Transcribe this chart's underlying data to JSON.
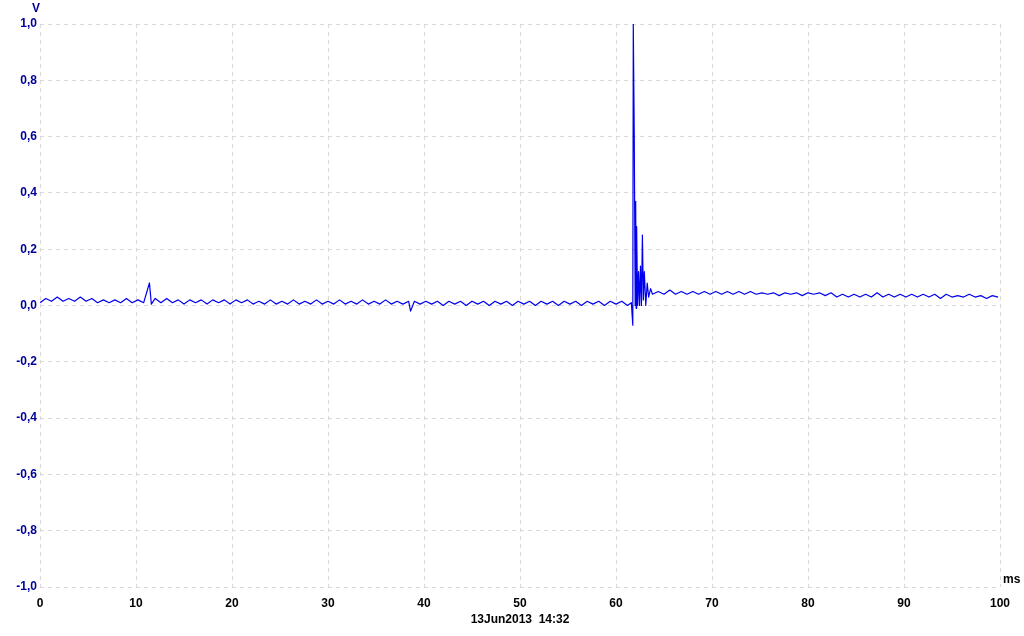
{
  "chart_data": {
    "type": "line",
    "xlabel": "ms",
    "ylabel": "V",
    "annotations": [
      "13Jun2013  14:32"
    ],
    "color": "#0000ee",
    "grid": true,
    "xlim": [
      0,
      100
    ],
    "xticks": [
      0,
      10,
      20,
      30,
      40,
      50,
      60,
      70,
      80,
      90,
      100
    ],
    "ylim": [
      -1,
      1
    ],
    "yticks": [
      {
        "value": -1,
        "label": "-1,0"
      },
      {
        "value": -0.8,
        "label": "-0,8"
      },
      {
        "value": -0.6,
        "label": "-0,6"
      },
      {
        "value": -0.4,
        "label": "-0,4"
      },
      {
        "value": -0.2,
        "label": "-0,2"
      },
      {
        "value": 0,
        "label": "0,0"
      },
      {
        "value": 0.2,
        "label": "0,2"
      },
      {
        "value": 0.4,
        "label": "0,4"
      },
      {
        "value": 0.6,
        "label": "0,6"
      },
      {
        "value": 0.8,
        "label": "0,8"
      },
      {
        "value": 1,
        "label": "1,0"
      }
    ],
    "x": [
      0,
      0.6,
      1.2,
      1.8,
      2.4,
      3,
      3.6,
      4.2,
      4.8,
      5.4,
      6,
      6.6,
      7.2,
      7.8,
      8.4,
      9,
      9.6,
      10.2,
      10.8,
      11.4,
      11.6,
      12,
      12.6,
      13.2,
      13.8,
      14.4,
      15,
      15.6,
      16.2,
      16.8,
      17.4,
      18,
      18.6,
      19.2,
      19.8,
      20.4,
      21,
      21.6,
      22.2,
      22.8,
      23.4,
      24,
      24.6,
      25.2,
      25.8,
      26.4,
      27,
      27.6,
      28.2,
      28.8,
      29.4,
      30,
      30.6,
      31.2,
      31.8,
      32.4,
      33,
      33.6,
      34.2,
      34.8,
      35.4,
      36,
      36.6,
      37.2,
      37.8,
      38.4,
      38.6,
      39,
      39.6,
      40.2,
      40.8,
      41.4,
      42,
      42.6,
      43.2,
      43.8,
      44.4,
      45,
      45.6,
      46.2,
      46.8,
      47.4,
      48,
      48.6,
      49.2,
      49.8,
      50.4,
      51,
      51.6,
      52.2,
      52.8,
      53.4,
      54,
      54.6,
      55.2,
      55.8,
      56.4,
      57,
      57.6,
      58.2,
      58.8,
      59.4,
      60,
      60.6,
      61.2,
      61.6,
      61.75,
      61.8,
      61.9,
      62,
      62.05,
      62.1,
      62.15,
      62.25,
      62.35,
      62.45,
      62.55,
      62.65,
      62.75,
      62.85,
      62.95,
      63.1,
      63.25,
      63.4,
      63.6,
      63.8,
      64.4,
      65,
      65.6,
      66.2,
      66.8,
      67.4,
      68,
      68.6,
      69.2,
      69.8,
      70.4,
      71,
      71.6,
      72.2,
      72.8,
      73.4,
      74,
      74.6,
      75.2,
      75.8,
      76.4,
      77,
      77.6,
      78.2,
      78.8,
      79.4,
      80,
      80.6,
      81.2,
      81.8,
      82.4,
      83,
      83.6,
      84.2,
      84.8,
      85.4,
      86,
      86.6,
      87.2,
      87.8,
      88.4,
      89,
      89.6,
      90.2,
      90.8,
      91.4,
      92,
      92.6,
      93.2,
      93.8,
      94.4,
      95,
      95.6,
      96.2,
      96.8,
      97.4,
      98,
      98.6,
      99.2,
      99.8
    ],
    "values": [
      0.01,
      0.025,
      0.015,
      0.03,
      0.015,
      0.025,
      0.015,
      0.03,
      0.015,
      0.025,
      0.01,
      0.02,
      0.01,
      0.02,
      0.01,
      0.025,
      0.01,
      0.02,
      0.01,
      0.08,
      0.005,
      0.025,
      0.01,
      0.025,
      0.01,
      0.02,
      0.005,
      0.02,
      0.01,
      0.02,
      0.005,
      0.02,
      0.01,
      0.02,
      0.005,
      0.02,
      0.01,
      0.02,
      0.005,
      0.015,
      0.005,
      0.02,
      0.005,
      0.015,
      0.005,
      0.02,
      0.005,
      0.015,
      0.005,
      0.02,
      0.005,
      0.015,
      0.005,
      0.02,
      0.005,
      0.015,
      0.005,
      0.02,
      0.005,
      0.015,
      0.005,
      0.02,
      0.005,
      0.015,
      0.005,
      0.015,
      -0.02,
      0.015,
      0.005,
      0.015,
      0.005,
      0.015,
      0,
      0.015,
      0.005,
      0.015,
      0,
      0.015,
      0.005,
      0.015,
      0,
      0.015,
      0.005,
      0.015,
      0,
      0.015,
      0.005,
      0.015,
      0,
      0.015,
      0.005,
      0.015,
      0,
      0.015,
      0.005,
      0.015,
      0,
      0.015,
      0.005,
      0.015,
      0,
      0.015,
      0.005,
      0.015,
      0,
      0.01,
      -0.07,
      1,
      0.61,
      0,
      0.37,
      -0.01,
      0.28,
      0,
      0.12,
      0,
      0.14,
      0,
      0.25,
      0.02,
      0.12,
      0,
      0.08,
      0.03,
      0.06,
      0.04,
      0.05,
      0.04,
      0.055,
      0.04,
      0.05,
      0.04,
      0.05,
      0.04,
      0.05,
      0.04,
      0.05,
      0.04,
      0.05,
      0.04,
      0.05,
      0.04,
      0.05,
      0.04,
      0.045,
      0.04,
      0.045,
      0.035,
      0.045,
      0.04,
      0.045,
      0.035,
      0.045,
      0.04,
      0.045,
      0.035,
      0.045,
      0.03,
      0.04,
      0.03,
      0.04,
      0.03,
      0.04,
      0.03,
      0.045,
      0.03,
      0.04,
      0.03,
      0.04,
      0.03,
      0.04,
      0.03,
      0.04,
      0.03,
      0.04,
      0.025,
      0.04,
      0.03,
      0.035,
      0.03,
      0.04,
      0.03,
      0.035,
      0.025,
      0.035,
      0.03
    ]
  }
}
